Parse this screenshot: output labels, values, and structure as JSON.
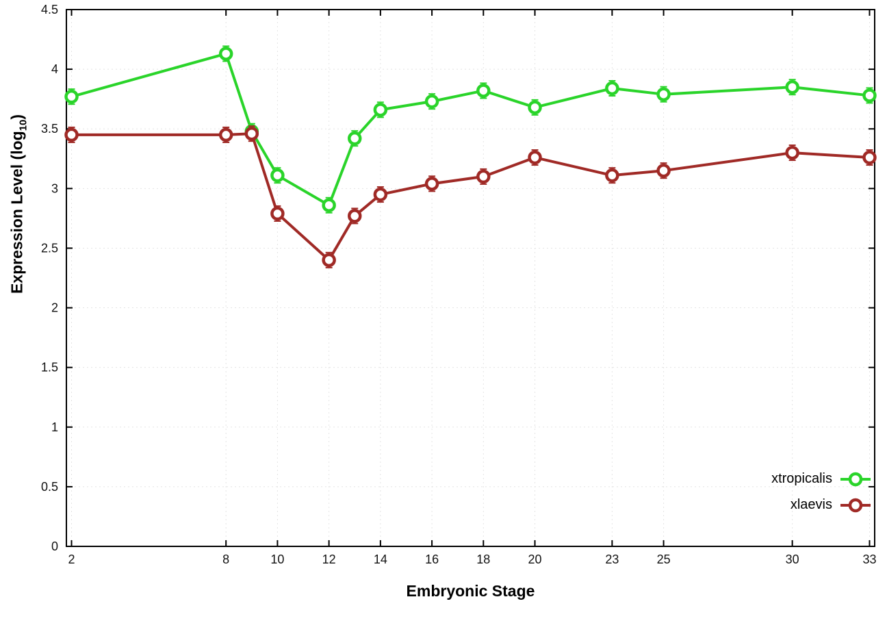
{
  "labels": {
    "x": "Embryonic Stage",
    "y_main": "Expression Level (log",
    "y_sub": "10",
    "y_close": ")"
  },
  "chart_data": {
    "type": "line",
    "title": "",
    "xlabel": "Embryonic Stage",
    "ylabel": "Expression Level (log10)",
    "x": [
      2,
      8,
      9,
      10,
      12,
      13,
      14,
      16,
      18,
      20,
      23,
      25,
      30,
      33
    ],
    "series": [
      {
        "name": "xtropicalis",
        "color": "#2ad42a",
        "values": [
          3.77,
          4.13,
          3.48,
          3.11,
          2.86,
          3.42,
          3.66,
          3.73,
          3.82,
          3.68,
          3.84,
          3.79,
          3.85,
          3.78
        ]
      },
      {
        "name": "xlaevis",
        "color": "#a02a26",
        "values": [
          3.45,
          3.45,
          3.46,
          2.79,
          2.4,
          2.77,
          2.95,
          3.04,
          3.1,
          3.26,
          3.11,
          3.15,
          3.3,
          3.26
        ]
      }
    ],
    "xticks": [
      2,
      8,
      10,
      12,
      14,
      16,
      18,
      20,
      23,
      25,
      30,
      33
    ],
    "yticks": [
      0,
      0.5,
      1,
      1.5,
      2,
      2.5,
      3,
      3.5,
      4,
      4.5
    ],
    "xlim": [
      1.8,
      33.2
    ],
    "ylim": [
      0,
      4.5
    ],
    "grid": true,
    "legend_position": "bottom-right",
    "marker": "open-circle"
  }
}
